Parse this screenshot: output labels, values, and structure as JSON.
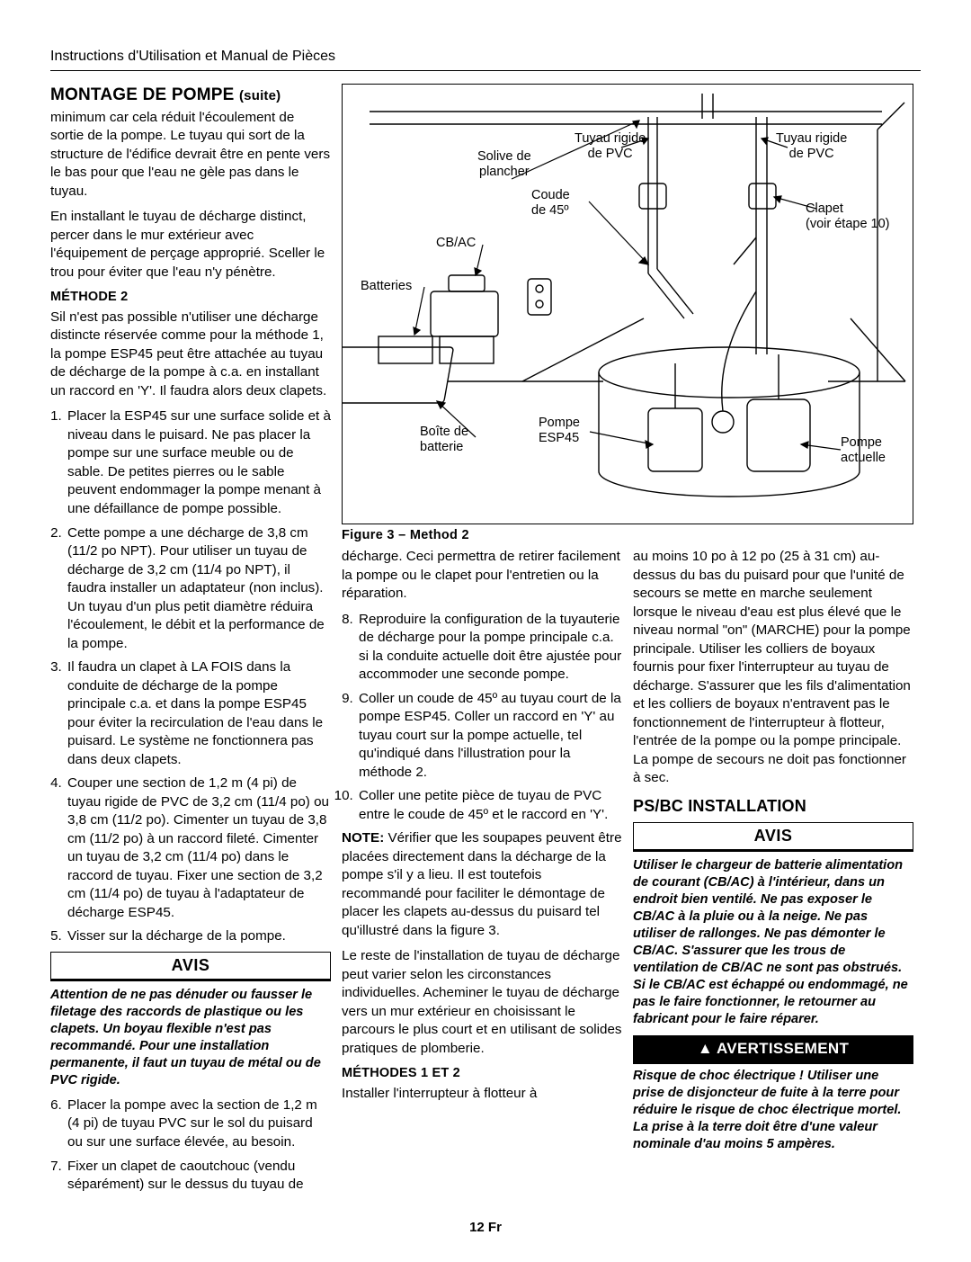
{
  "header": "Instructions d'Utilisation et Manual de Pièces",
  "page_number": "12 Fr",
  "title": {
    "main": "MONTAGE DE POMPE",
    "suite": "(suite)"
  },
  "col1": {
    "p1": "minimum car cela réduit l'écoulement de sortie de la pompe. Le tuyau qui sort de la structure de l'édifice devrait être en pente vers le bas pour que l'eau ne gèle pas dans le tuyau.",
    "p2": "En installant le tuyau de décharge distinct, percer dans le mur extérieur avec l'équipement de perçage approprié. Sceller le trou pour éviter que l'eau n'y pénètre.",
    "method2_label": "MÉTHODE 2",
    "m2_intro": "Sil n'est pas possible n'utiliser une décharge distincte réservée comme pour la méthode 1, la pompe ESP45 peut être attachée au tuyau de décharge de la pompe à c.a. en installant un raccord en 'Y'. Il faudra alors deux clapets.",
    "steps1": [
      "Placer la ESP45 sur une surface solide et à niveau dans le puisard. Ne pas placer la pompe sur une surface meuble ou de sable. De petites pierres ou le sable peuvent endommager la pompe menant à une défaillance de pompe possible.",
      "Cette pompe a une décharge de 3,8 cm (11/2 po NPT). Pour utiliser un tuyau de décharge de 3,2 cm (11/4 po NPT), il faudra installer un adaptateur (non inclus). Un tuyau d'un plus petit diamètre réduira l'écoulement, le débit et la performance de la pompe.",
      "Il faudra un clapet à LA FOIS dans la conduite de décharge de la pompe principale c.a. et dans la pompe ESP45 pour éviter la recirculation de l'eau dans le puisard. Le système ne fonctionnera pas dans deux clapets.",
      "Couper une section de 1,2 m (4 pi) de tuyau rigide de PVC de 3,2 cm (11/4 po) ou 3,8 cm (11/2 po). Cimenter un tuyau de 3,8 cm (11/2 po) à un raccord fileté. Cimenter un tuyau de 3,2 cm (11/4 po) dans le raccord de tuyau. Fixer une section de 3,2 cm (11/4 po) de tuyau à l'adaptateur de décharge ESP45.",
      "Visser sur la décharge de la pompe."
    ],
    "avis_label": "AVIS",
    "avis_text": "Attention de ne pas dénuder ou fausser le filetage des raccords de plastique ou les clapets. Un boyau flexible n'est pas recommandé. Pour une installation permanente, il faut un tuyau de métal ou de PVC rigide.",
    "steps2": [
      "Placer la pompe avec la section de 1,2 m (4 pi) de tuyau PVC sur le sol du puisard ou sur une surface élevée, au besoin.",
      "Fixer un clapet de caoutchouc (vendu séparément) sur le dessus du tuyau de"
    ]
  },
  "col2a": {
    "p1": "décharge. Ceci permettra de retirer facilement la pompe ou le clapet pour l'entretien ou la réparation.",
    "steps3": [
      "Reproduire la configuration de la tuyauterie de décharge pour la pompe principale c.a. si la conduite actuelle doit être ajustée pour accommoder une seconde pompe.",
      "Coller un coude de 45º au tuyau court de la pompe ESP45. Coller un raccord en 'Y' au tuyau court sur la pompe actuelle, tel qu'indiqué dans l'illustration pour la méthode 2.",
      "Coller une petite pièce de tuyau de PVC entre le coude de 45º et le raccord en 'Y'."
    ],
    "note_label": "NOTE:",
    "note_text": " Vérifier que les soupapes peuvent être placées directement dans la décharge de la pompe s'il y a lieu. Il est toutefois recommandé pour faciliter le démontage de placer les clapets au-dessus du puisard tel qu'illustré dans la figure 3.",
    "p2": "Le reste de l'installation de tuyau de décharge peut varier selon les circonstances individuelles. Acheminer le tuyau de décharge vers un mur extérieur en choisissant le parcours le plus court et en utilisant de solides pratiques de plomberie.",
    "methods12_label": "MÉTHODES 1 ET 2",
    "p3": "Installer l'interrupteur à flotteur à"
  },
  "col3": {
    "p1": "au moins 10 po à 12 po (25 à 31 cm) au-dessus du bas du puisard pour que l'unité de secours se mette en marche seulement lorsque le niveau d'eau est plus élevé que le niveau normal \"on\" (MARCHE) pour la pompe principale. Utiliser les colliers de boyaux fournis pour fixer l'interrupteur au tuyau de décharge. S'assurer que les fils d'alimentation et les colliers de boyaux n'entravent pas le fonctionnement de l'interrupteur à flotteur, l'entrée de la pompe ou la pompe principale. La pompe de secours ne doit pas fonctionner à sec.",
    "psbc_title": "PS/BC INSTALLATION",
    "avis_label": "AVIS",
    "avis_text": "Utiliser le chargeur de batterie alimentation de courant (CB/AC) à l'intérieur, dans un endroit bien ventilé. Ne pas exposer le CB/AC à la pluie ou à la neige. Ne pas utiliser de rallonges. Ne pas démonter le CB/AC. S'assurer que les trous de ventilation de CB/AC ne sont pas obstrués. Si le CB/AC est échappé ou endommagé, ne pas le faire fonctionner, le retourner au fabricant pour le faire réparer.",
    "warn_label": "AVERTISSEMENT",
    "warn_text": "Risque de choc électrique ! Utiliser une prise de disjoncteur de fuite à la terre pour réduire le risque de choc électrique mortel. La prise à la terre doit être d'une valeur nominale d'au moins 5 ampères."
  },
  "diagram": {
    "caption": "Figure 3 – Method 2",
    "labels": {
      "solive": "Solive de\nplancher",
      "tuyau1": "Tuyau rigide\nde PVC",
      "tuyau2": "Tuyau rigide\nde PVC",
      "coude": "Coude\nde 45º",
      "clapet": "Clapet\n(voir étape 10)",
      "cbac": "CB/AC",
      "batteries": "Batteries",
      "boite": "Boîte de\nbatterie",
      "esp45": "Pompe\nESP45",
      "actuelle": "Pompe\nactuelle"
    }
  }
}
